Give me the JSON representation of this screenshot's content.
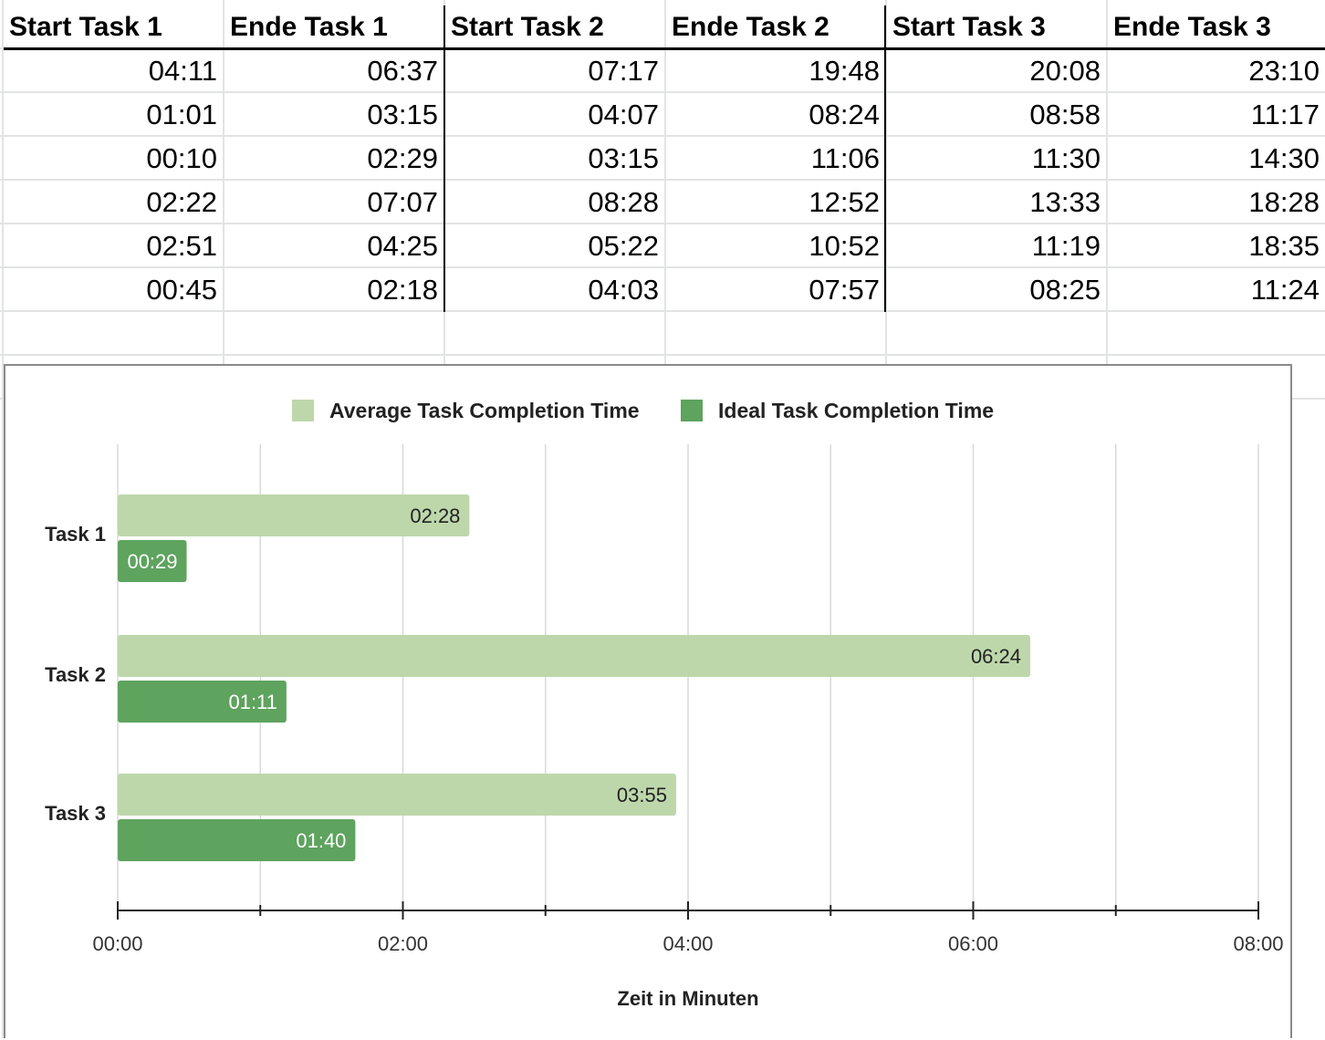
{
  "sheet": {
    "headers": [
      "Start Task 1",
      "Ende Task 1",
      "Start Task 2",
      "Ende Task 2",
      "Start Task 3",
      "Ende Task 3"
    ],
    "rows": [
      [
        "04:11",
        "06:37",
        "07:17",
        "19:48",
        "20:08",
        "23:10"
      ],
      [
        "01:01",
        "03:15",
        "04:07",
        "08:24",
        "08:58",
        "11:17"
      ],
      [
        "00:10",
        "02:29",
        "03:15",
        "11:06",
        "11:30",
        "14:30"
      ],
      [
        "02:22",
        "07:07",
        "08:28",
        "12:52",
        "13:33",
        "18:28"
      ],
      [
        "02:51",
        "04:25",
        "05:22",
        "10:52",
        "11:19",
        "18:35"
      ],
      [
        "00:45",
        "02:18",
        "04:03",
        "07:57",
        "08:25",
        "11:24"
      ]
    ]
  },
  "chart_data": {
    "type": "bar",
    "orientation": "horizontal",
    "categories": [
      "Task 1",
      "Task 2",
      "Task 3"
    ],
    "series": [
      {
        "name": "Average Task Completion Time",
        "color": "#bdd7ab",
        "values": [
          2.4667,
          6.4,
          3.9167
        ],
        "labels": [
          "02:28",
          "06:24",
          "03:55"
        ],
        "label_color": "#222222"
      },
      {
        "name": "Ideal Task Completion Time",
        "color": "#5ea35e",
        "values": [
          0.4833,
          1.1833,
          1.6667
        ],
        "labels": [
          "00:29",
          "01:11",
          "01:40"
        ],
        "label_color": "#ffffff"
      }
    ],
    "xlabel": "Zeit in Minuten",
    "xlim": [
      0,
      8
    ],
    "xticks": [
      "00:00",
      "02:00",
      "04:00",
      "06:00",
      "08:00"
    ],
    "grid": true,
    "legend": "top"
  }
}
